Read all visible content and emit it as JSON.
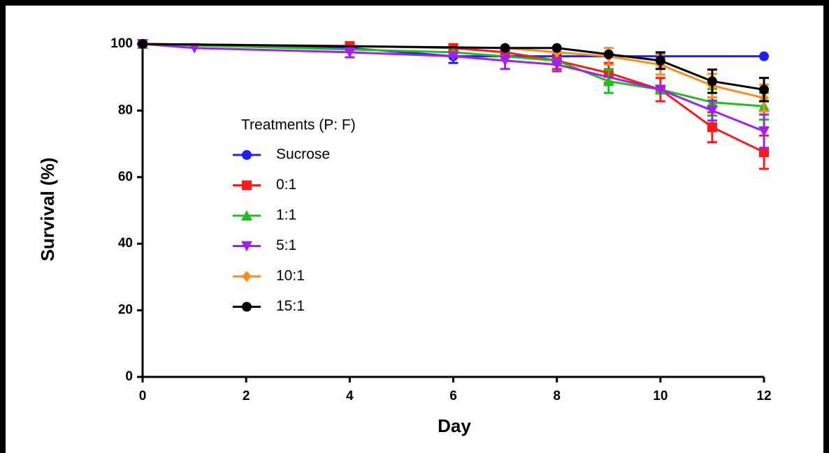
{
  "chart_data": {
    "type": "line",
    "x_label": "Day",
    "y_label": "Survival (%)",
    "xlim": [
      0,
      12
    ],
    "xticks": [
      0,
      2,
      4,
      6,
      8,
      10,
      12
    ],
    "ylim": [
      0,
      100
    ],
    "yticks": [
      0,
      20,
      40,
      60,
      80,
      100
    ],
    "legend_title": "Treatments (P: F)",
    "legend_position": "upper left",
    "series": [
      {
        "name": "Sucrose",
        "color": "#1f1fff",
        "marker": "circle",
        "x": [
          0,
          4,
          6,
          8,
          10,
          12
        ],
        "values": [
          100,
          98.8,
          96.3,
          96.3,
          96.3,
          96.3
        ],
        "errors": [
          null,
          null,
          2,
          null,
          null,
          null
        ]
      },
      {
        "name": "0:1",
        "color": "#ff1a1a",
        "marker": "square",
        "x": [
          0,
          4,
          6,
          7,
          8,
          9,
          10,
          11,
          12
        ],
        "values": [
          100,
          99.4,
          98.8,
          97.5,
          95,
          91.3,
          86.3,
          75,
          67.5
        ],
        "errors": [
          null,
          null,
          null,
          1.5,
          2.5,
          3,
          3.5,
          4.5,
          5
        ]
      },
      {
        "name": "1:1",
        "color": "#1fbf1f",
        "marker": "triangle-up",
        "x": [
          0,
          6,
          8,
          9,
          10,
          11,
          12
        ],
        "values": [
          100,
          97.5,
          95,
          88.8,
          86.3,
          82.5,
          81.3
        ],
        "errors": [
          null,
          null,
          null,
          3.5,
          null,
          4,
          4
        ]
      },
      {
        "name": "5:1",
        "color": "#a020f0",
        "marker": "triangle-down",
        "x": [
          0,
          1,
          4,
          6,
          7,
          8,
          10,
          11,
          12
        ],
        "values": [
          100,
          98.8,
          97.5,
          96.3,
          95,
          93.8,
          86.3,
          80,
          73.8
        ],
        "errors": [
          null,
          null,
          1.5,
          null,
          2.5,
          2,
          null,
          3,
          5
        ]
      },
      {
        "name": "10:1",
        "color": "#ff8c1a",
        "marker": "diamond",
        "x": [
          0,
          7,
          8,
          9,
          10,
          11,
          12
        ],
        "values": [
          100,
          98.8,
          97.5,
          96.3,
          93.8,
          87.5,
          83.8
        ],
        "errors": [
          null,
          null,
          null,
          2.5,
          3,
          3.5,
          4
        ]
      },
      {
        "name": "15:1",
        "color": "#000000",
        "marker": "circle",
        "x": [
          0,
          7,
          8,
          9,
          10,
          11,
          12
        ],
        "values": [
          100,
          98.8,
          98.8,
          96.9,
          95,
          88.8,
          86.3
        ],
        "errors": [
          null,
          null,
          null,
          null,
          2.5,
          3.5,
          3.5
        ]
      }
    ]
  }
}
